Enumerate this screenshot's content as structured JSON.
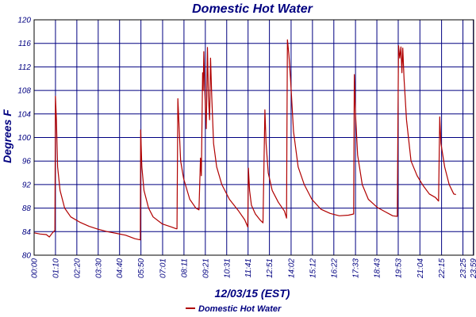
{
  "chart_data": {
    "type": "line",
    "title": "Domestic Hot Water",
    "xlabel": "12/03/15 (EST)",
    "ylabel": "Degrees F",
    "ylim": [
      80,
      120
    ],
    "yticks": [
      80,
      84,
      88,
      92,
      96,
      100,
      104,
      108,
      112,
      116,
      120
    ],
    "xlim_hours": [
      0,
      24
    ],
    "xtick_labels": [
      "00:00",
      "01:10",
      "02:20",
      "03:30",
      "04:40",
      "05:50",
      "07:01",
      "08:11",
      "09:21",
      "10:31",
      "11:41",
      "12:51",
      "14:02",
      "15:12",
      "16:22",
      "17:33",
      "18:43",
      "19:53",
      "21:04",
      "22:15",
      "23:25",
      "23:59"
    ],
    "grid": true,
    "legend_position": "bottom",
    "colors": {
      "series": "#b00000",
      "grid": "#000080",
      "axis_text": "#000080",
      "plot_border": "#000000"
    },
    "series": [
      {
        "name": "Domestic Hot Water",
        "points": [
          [
            "00:00",
            83.8
          ],
          [
            "00:20",
            83.6
          ],
          [
            "00:40",
            83.5
          ],
          [
            "00:50",
            83.1
          ],
          [
            "01:00",
            83.8
          ],
          [
            "01:08",
            84.2
          ],
          [
            "01:10",
            107
          ],
          [
            "01:13",
            103
          ],
          [
            "01:17",
            95
          ],
          [
            "01:25",
            91
          ],
          [
            "01:40",
            88
          ],
          [
            "02:00",
            86.5
          ],
          [
            "02:30",
            85.6
          ],
          [
            "03:00",
            84.9
          ],
          [
            "03:30",
            84.4
          ],
          [
            "04:00",
            84.0
          ],
          [
            "04:30",
            83.7
          ],
          [
            "05:00",
            83.4
          ],
          [
            "05:30",
            82.8
          ],
          [
            "05:48",
            82.6
          ],
          [
            "05:49",
            101.3
          ],
          [
            "05:53",
            95
          ],
          [
            "06:00",
            91
          ],
          [
            "06:15",
            88
          ],
          [
            "06:30",
            86.5
          ],
          [
            "07:00",
            85.3
          ],
          [
            "07:30",
            84.8
          ],
          [
            "07:45",
            84.5
          ],
          [
            "07:48",
            84.5
          ],
          [
            "07:51",
            106.6
          ],
          [
            "07:55",
            102
          ],
          [
            "08:00",
            96
          ],
          [
            "08:10",
            93
          ],
          [
            "08:30",
            89.5
          ],
          [
            "08:50",
            88.0
          ],
          [
            "09:00",
            87.7
          ],
          [
            "09:05",
            96.5
          ],
          [
            "09:08",
            93.5
          ],
          [
            "09:12",
            111
          ],
          [
            "09:14",
            108
          ],
          [
            "09:16",
            114.6
          ],
          [
            "09:19",
            108
          ],
          [
            "09:24",
            101.5
          ],
          [
            "09:28",
            115.3
          ],
          [
            "09:31",
            107
          ],
          [
            "09:35",
            103
          ],
          [
            "09:38",
            113.5
          ],
          [
            "09:42",
            107
          ],
          [
            "09:48",
            99
          ],
          [
            "09:58",
            95
          ],
          [
            "10:15",
            92
          ],
          [
            "10:40",
            89.5
          ],
          [
            "11:10",
            87.5
          ],
          [
            "11:30",
            86.0
          ],
          [
            "11:40",
            84.8
          ],
          [
            "11:42",
            94.8
          ],
          [
            "11:46",
            91
          ],
          [
            "11:52",
            88.5
          ],
          [
            "12:05",
            87
          ],
          [
            "12:20",
            86
          ],
          [
            "12:30",
            85.5
          ],
          [
            "12:36",
            104.7
          ],
          [
            "12:40",
            99
          ],
          [
            "12:47",
            94
          ],
          [
            "13:00",
            91
          ],
          [
            "13:20",
            89
          ],
          [
            "13:40",
            87.5
          ],
          [
            "13:47",
            86.3
          ],
          [
            "13:48",
            99
          ],
          [
            "13:50",
            116.6
          ],
          [
            "13:55",
            114
          ],
          [
            "14:00",
            110
          ],
          [
            "14:10",
            101
          ],
          [
            "14:25",
            95
          ],
          [
            "14:45",
            92
          ],
          [
            "15:10",
            89.5
          ],
          [
            "15:40",
            87.8
          ],
          [
            "16:10",
            87.1
          ],
          [
            "16:40",
            86.7
          ],
          [
            "17:10",
            86.8
          ],
          [
            "17:27",
            87.0
          ],
          [
            "17:29",
            110.7
          ],
          [
            "17:33",
            104
          ],
          [
            "17:40",
            97
          ],
          [
            "17:55",
            92
          ],
          [
            "18:15",
            89.5
          ],
          [
            "18:45",
            88.1
          ],
          [
            "19:10",
            87.4
          ],
          [
            "19:35",
            86.7
          ],
          [
            "19:50",
            86.6
          ],
          [
            "19:52",
            103
          ],
          [
            "19:54",
            115.6
          ],
          [
            "19:58",
            113.5
          ],
          [
            "20:02",
            115.4
          ],
          [
            "20:05",
            111
          ],
          [
            "20:08",
            115.2
          ],
          [
            "20:12",
            110
          ],
          [
            "20:20",
            103
          ],
          [
            "20:35",
            96
          ],
          [
            "20:55",
            93.5
          ],
          [
            "21:15",
            91.8
          ],
          [
            "21:35",
            90.4
          ],
          [
            "21:55",
            89.8
          ],
          [
            "22:05",
            89.2
          ],
          [
            "22:09",
            103.5
          ],
          [
            "22:13",
            99
          ],
          [
            "22:25",
            95
          ],
          [
            "22:40",
            92
          ],
          [
            "22:55",
            90.4
          ],
          [
            "23:02",
            90.3
          ]
        ]
      }
    ]
  }
}
